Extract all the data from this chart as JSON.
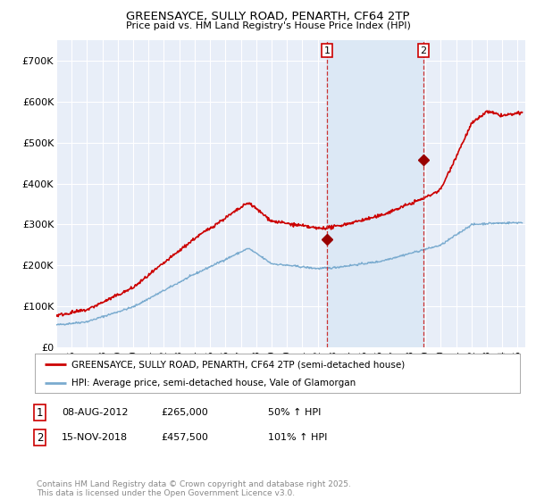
{
  "title": "GREENSAYCE, SULLY ROAD, PENARTH, CF64 2TP",
  "subtitle": "Price paid vs. HM Land Registry's House Price Index (HPI)",
  "xlim_start": 1995.0,
  "xlim_end": 2025.5,
  "ylim": [
    0,
    750000
  ],
  "yticks": [
    0,
    100000,
    200000,
    300000,
    400000,
    500000,
    600000,
    700000
  ],
  "ytick_labels": [
    "£0",
    "£100K",
    "£200K",
    "£300K",
    "£400K",
    "£500K",
    "£600K",
    "£700K"
  ],
  "background_color": "#ffffff",
  "plot_bg_color": "#e8eef8",
  "grid_color": "#ffffff",
  "shade_color": "#dce8f5",
  "legend1_label": "GREENSAYCE, SULLY ROAD, PENARTH, CF64 2TP (semi-detached house)",
  "legend2_label": "HPI: Average price, semi-detached house, Vale of Glamorgan",
  "sale1_date": 2012.6,
  "sale1_price": 265000,
  "sale2_date": 2018.88,
  "sale2_price": 457500,
  "footer": "Contains HM Land Registry data © Crown copyright and database right 2025.\nThis data is licensed under the Open Government Licence v3.0.",
  "red_line_color": "#cc0000",
  "blue_line_color": "#7aabcf",
  "sale_marker_color": "#990000"
}
